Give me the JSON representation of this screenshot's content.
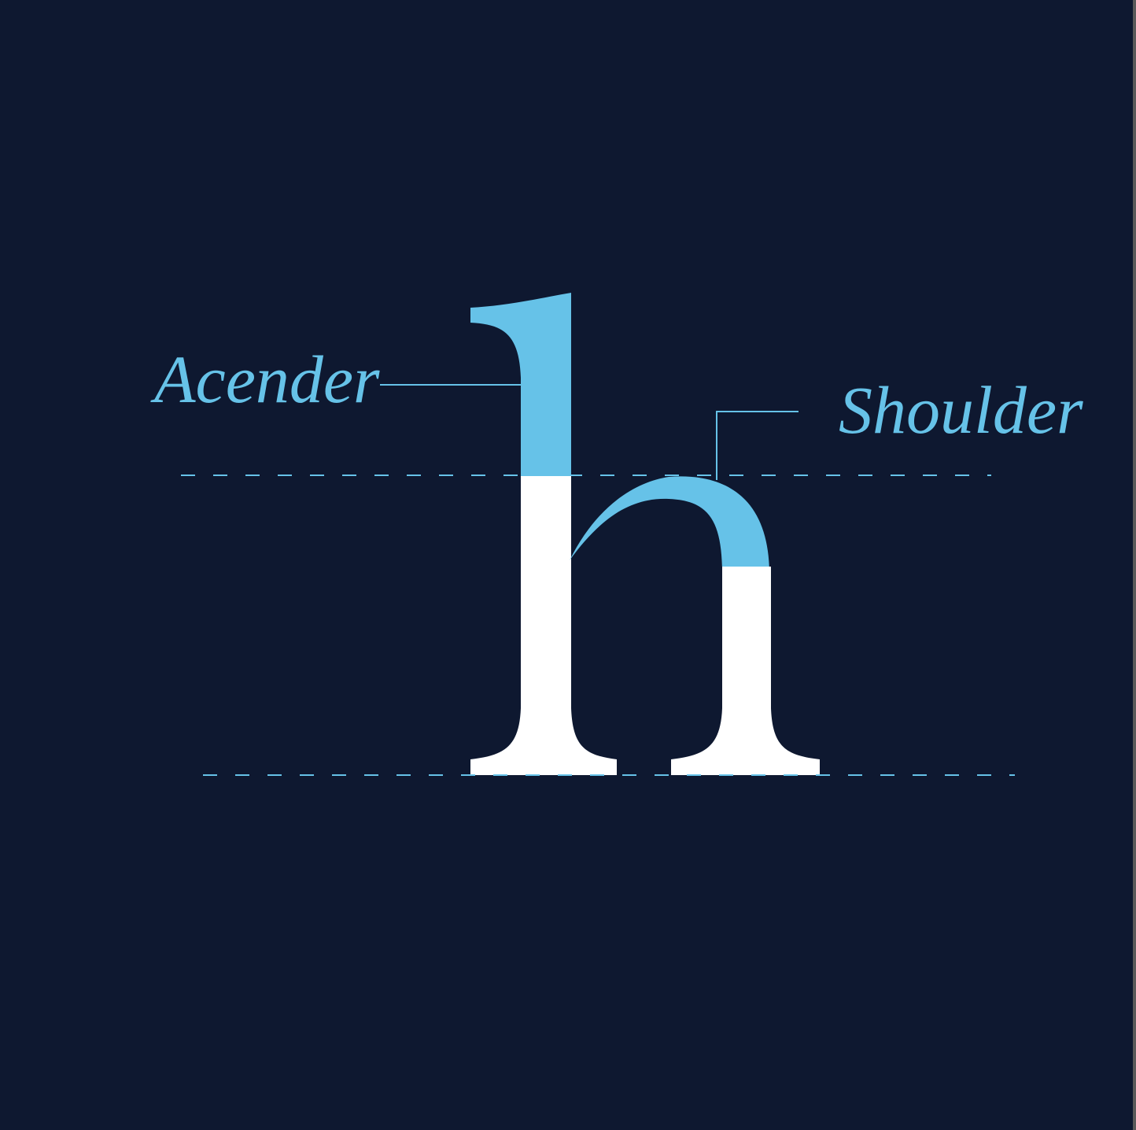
{
  "colors": {
    "background": "#0e1830",
    "accent": "#66c2e8",
    "letter_base": "#ffffff"
  },
  "diagram": {
    "letter": "h",
    "labels": {
      "ascender": "Acender",
      "shoulder": "Shoulder"
    },
    "guides": [
      "x-height-line",
      "baseline"
    ]
  }
}
